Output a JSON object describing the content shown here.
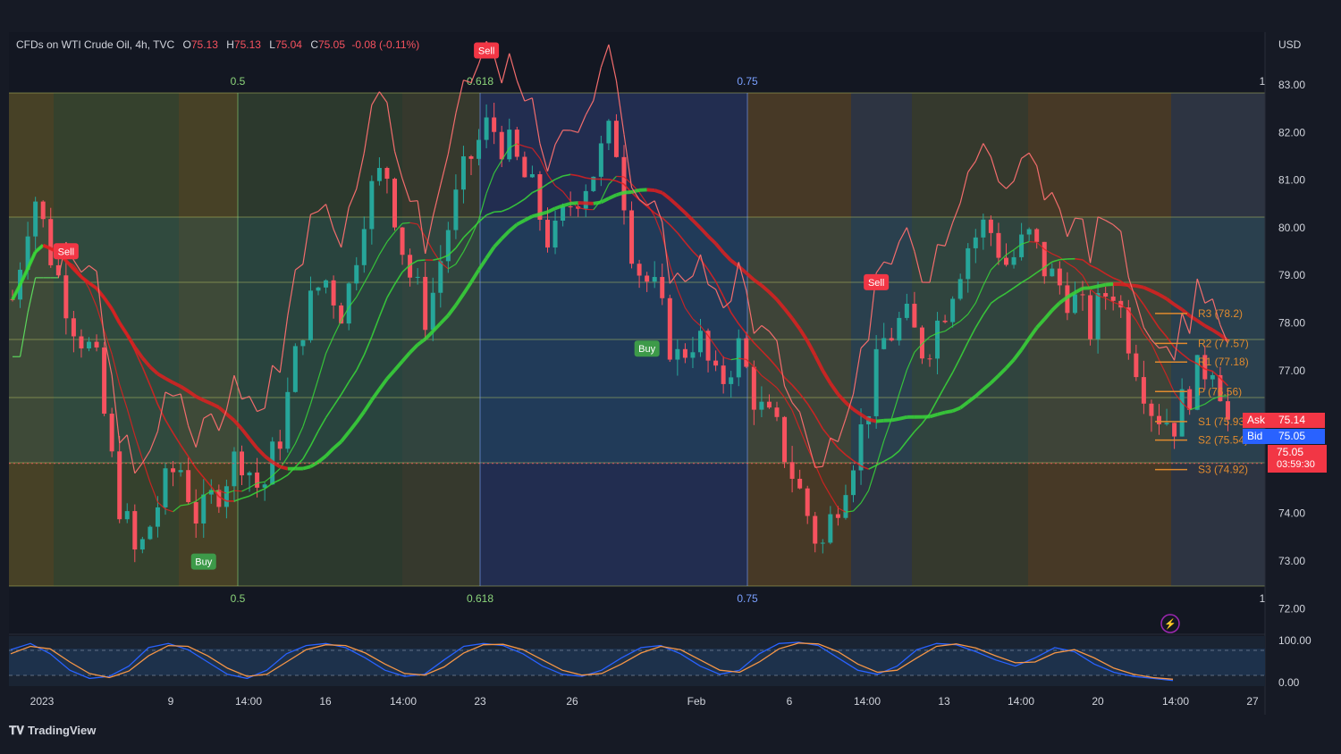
{
  "header": {
    "symbol": "CFDs on WTI Crude Oil, 4h, TVC",
    "o_label": "O",
    "o": "75.13",
    "h_label": "H",
    "h": "75.13",
    "l_label": "L",
    "l": "75.04",
    "c_label": "C",
    "c": "75.05",
    "change": "-0.08 (-0.11%)"
  },
  "currency": "USD",
  "brand": "TradingView",
  "tags": {
    "ask_label": "Ask",
    "ask": "75.14",
    "bid_label": "Bid",
    "bid": "75.05",
    "last": "75.05",
    "countdown": "03:59:30"
  },
  "signals": {
    "sell": "Sell",
    "buy": "Buy"
  },
  "colors": {
    "background": "#161a25",
    "bull": "#26a69a",
    "bear": "#f7525f",
    "pivot": "#e08a2e",
    "ma_up": "#39d839",
    "ma_down": "#e02020"
  },
  "chart_data": {
    "type": "candlestick",
    "title": "CFDs on WTI Crude Oil, 4h, TVC",
    "timeframe": "4h",
    "y_range": [
      71.8,
      83.5
    ],
    "y_ticks": [
      "83.00",
      "82.00",
      "81.00",
      "80.00",
      "79.00",
      "78.00",
      "77.00",
      "76.00",
      "75.00",
      "74.00",
      "73.00",
      "72.00"
    ],
    "x_ticks": [
      "2023",
      "9",
      "14:00",
      "16",
      "14:00",
      "23",
      "26",
      "Feb",
      "6",
      "14:00",
      "13",
      "14:00",
      "20",
      "14:00",
      "27"
    ],
    "close_path": [
      78.5,
      80.8,
      79.2,
      78.0,
      77.2,
      74.5,
      73.0,
      74.2,
      75.1,
      73.8,
      74.6,
      75.3,
      74.4,
      75.8,
      78.0,
      79.0,
      78.2,
      80.5,
      81.3,
      79.2,
      78.1,
      80.0,
      81.4,
      82.2,
      81.6,
      80.8,
      79.6,
      80.6,
      81.2,
      82.1,
      79.3,
      78.6,
      77.2,
      77.8,
      76.6,
      77.5,
      76.2,
      75.6,
      74.4,
      73.2,
      74.6,
      75.8,
      77.6,
      78.1,
      77.4,
      78.4,
      79.6,
      80.1,
      79.2,
      79.8,
      79.0,
      78.6,
      77.9,
      78.9,
      77.5,
      76.2,
      75.9,
      76.8,
      77.3,
      75.1
    ],
    "pivots": [
      {
        "label": "R3 (78.2)",
        "value": 78.2
      },
      {
        "label": "R2 (77.57)",
        "value": 77.57
      },
      {
        "label": "R1 (77.18)",
        "value": 77.18
      },
      {
        "label": "P (76.56)",
        "value": 76.56
      },
      {
        "label": "S1 (75.93)",
        "value": 75.93
      },
      {
        "label": "S2 (75.54)",
        "value": 75.54
      },
      {
        "label": "S3 (74.92)",
        "value": 74.92
      }
    ],
    "fib_levels": [
      "0.5",
      "0.618",
      "0.75",
      "1"
    ],
    "signals": [
      {
        "type": "Sell",
        "bar": 7
      },
      {
        "type": "Buy",
        "bar": 25
      },
      {
        "type": "Sell",
        "bar": 62
      },
      {
        "type": "Buy",
        "bar": 83
      },
      {
        "type": "Sell",
        "bar": 113
      }
    ],
    "oscillator": {
      "y_ticks": [
        "100.00",
        "0.00"
      ],
      "k": [
        80,
        95,
        70,
        30,
        10,
        15,
        40,
        85,
        95,
        80,
        50,
        20,
        10,
        30,
        70,
        90,
        95,
        85,
        60,
        30,
        15,
        20,
        55,
        88,
        95,
        90,
        70,
        40,
        20,
        15,
        30,
        60,
        85,
        90,
        70,
        40,
        20,
        30,
        70,
        95,
        98,
        90,
        60,
        30,
        20,
        40,
        80,
        95,
        92,
        75,
        55,
        40,
        60,
        85,
        75,
        45,
        25,
        15,
        10,
        5
      ],
      "d": [
        70,
        88,
        82,
        50,
        22,
        12,
        28,
        65,
        90,
        88,
        65,
        35,
        15,
        20,
        50,
        80,
        92,
        90,
        72,
        45,
        22,
        18,
        38,
        72,
        92,
        93,
        80,
        55,
        30,
        18,
        22,
        45,
        72,
        88,
        80,
        55,
        30,
        25,
        50,
        82,
        96,
        94,
        75,
        45,
        25,
        30,
        60,
        88,
        94,
        84,
        65,
        48,
        50,
        72,
        80,
        60,
        35,
        20,
        12,
        8
      ]
    }
  }
}
